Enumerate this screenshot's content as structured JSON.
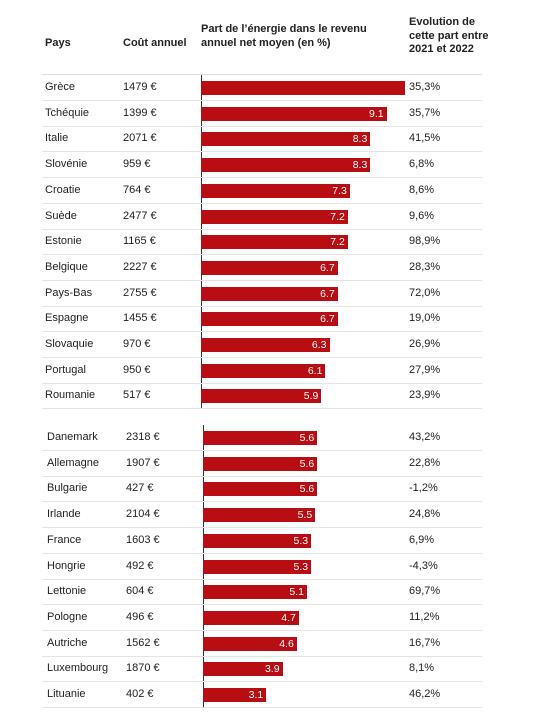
{
  "headers": {
    "country": "Pays",
    "cost": "Coût annuel",
    "share": "Part de l’énergie dans le revenu annuel net moyen (en %)",
    "evolution": "Evolution de cette part entre 2021 et 2022"
  },
  "chart_data": {
    "type": "bar",
    "orientation": "horizontal",
    "title": "",
    "xlabel": "Part de l’énergie dans le revenu annuel net moyen (en %)",
    "xlim": [
      0,
      10
    ],
    "grid": false,
    "groups": [
      {
        "rows": [
          {
            "country": "Grèce",
            "cost": "1479 €",
            "value": 10,
            "label": "",
            "evolution": "35,3%"
          },
          {
            "country": "Tchéquie",
            "cost": "1399 €",
            "value": 9.1,
            "label": "9.1",
            "evolution": "35,7%"
          },
          {
            "country": "Italie",
            "cost": "2071 €",
            "value": 8.3,
            "label": "8.3",
            "evolution": "41,5%"
          },
          {
            "country": "Slovénie",
            "cost": "959 €",
            "value": 8.3,
            "label": "8.3",
            "evolution": "6,8%"
          },
          {
            "country": "Croatie",
            "cost": "764 €",
            "value": 7.3,
            "label": "7.3",
            "evolution": "8,6%"
          },
          {
            "country": "Suède",
            "cost": "2477 €",
            "value": 7.2,
            "label": "7.2",
            "evolution": "9,6%"
          },
          {
            "country": "Estonie",
            "cost": "1165 €",
            "value": 7.2,
            "label": "7.2",
            "evolution": "98,9%"
          },
          {
            "country": "Belgique",
            "cost": "2227 €",
            "value": 6.7,
            "label": "6.7",
            "evolution": "28,3%"
          },
          {
            "country": "Pays-Bas",
            "cost": "2755 €",
            "value": 6.7,
            "label": "6.7",
            "evolution": "72,0%"
          },
          {
            "country": "Espagne",
            "cost": "1455 €",
            "value": 6.7,
            "label": "6.7",
            "evolution": "19,0%"
          },
          {
            "country": "Slovaquie",
            "cost": "970 €",
            "value": 6.3,
            "label": "6.3",
            "evolution": "26,9%"
          },
          {
            "country": "Portugal",
            "cost": "950 €",
            "value": 6.1,
            "label": "6.1",
            "evolution": "27,9%"
          },
          {
            "country": "Roumanie",
            "cost": "517 €",
            "value": 5.9,
            "label": "5.9",
            "evolution": "23,9%"
          }
        ]
      },
      {
        "rows": [
          {
            "country": "Danemark",
            "cost": "2318 €",
            "value": 5.6,
            "label": "5.6",
            "evolution": "43,2%"
          },
          {
            "country": "Allemagne",
            "cost": "1907 €",
            "value": 5.6,
            "label": "5.6",
            "evolution": "22,8%"
          },
          {
            "country": "Bulgarie",
            "cost": "427 €",
            "value": 5.6,
            "label": "5.6",
            "evolution": "-1,2%"
          },
          {
            "country": "Irlande",
            "cost": "2104 €",
            "value": 5.5,
            "label": "5.5",
            "evolution": "24,8%"
          },
          {
            "country": "France",
            "cost": "1603 €",
            "value": 5.3,
            "label": "5.3",
            "evolution": "6,9%"
          },
          {
            "country": "Hongrie",
            "cost": "492 €",
            "value": 5.3,
            "label": "5.3",
            "evolution": "-4,3%"
          },
          {
            "country": "Lettonie",
            "cost": "604 €",
            "value": 5.1,
            "label": "5.1",
            "evolution": "69,7%"
          },
          {
            "country": "Pologne",
            "cost": "496 €",
            "value": 4.7,
            "label": "4.7",
            "evolution": "11,2%"
          },
          {
            "country": "Autriche",
            "cost": "1562 €",
            "value": 4.6,
            "label": "4.6",
            "evolution": "16,7%"
          },
          {
            "country": "Luxembourg",
            "cost": "1870 €",
            "value": 3.9,
            "label": "3.9",
            "evolution": "8,1%"
          },
          {
            "country": "Lituanie",
            "cost": "402 €",
            "value": 3.1,
            "label": "3.1",
            "evolution": "46,2%"
          }
        ]
      }
    ],
    "colors": {
      "bar": "#b70d13",
      "bar_label": "#ffffff"
    }
  }
}
